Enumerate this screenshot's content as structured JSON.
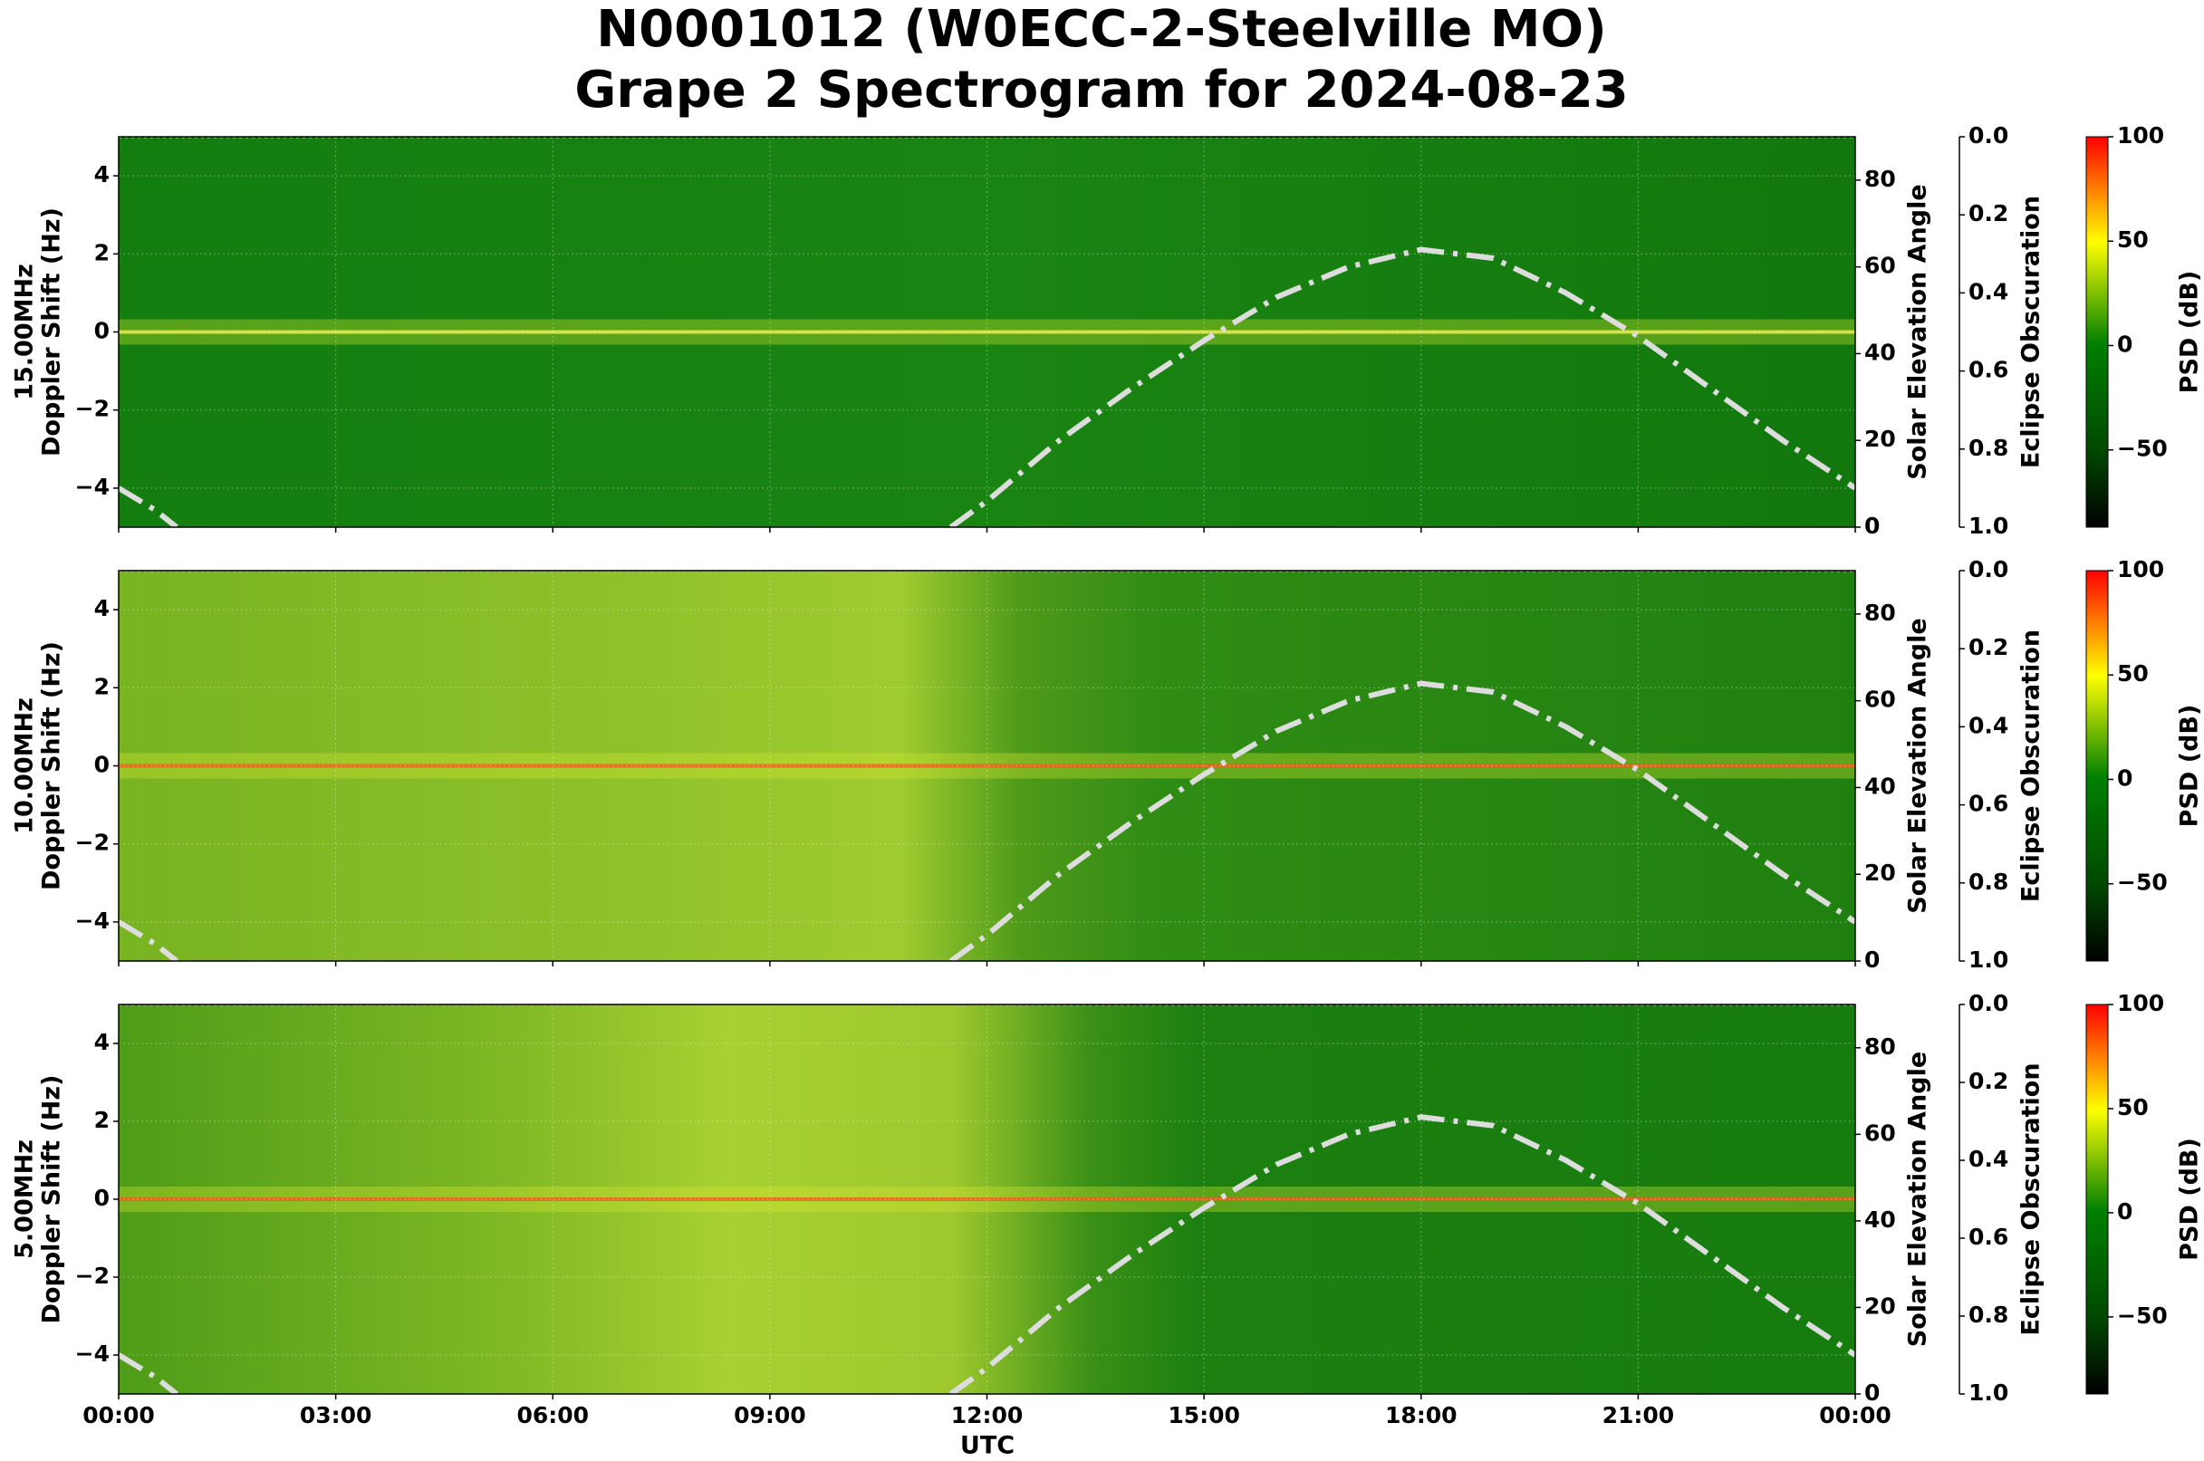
{
  "chart_data": {
    "type": "spectrogram",
    "title": "N0001012 (W0ECC-2-Steelville MO)",
    "subtitle": "Grape 2 Spectrogram for 2024-08-23",
    "xlabel": "UTC",
    "xlim": [
      0,
      24
    ],
    "xticks": [
      {
        "value": 0,
        "label": "00:00"
      },
      {
        "value": 3,
        "label": "03:00"
      },
      {
        "value": 6,
        "label": "06:00"
      },
      {
        "value": 9,
        "label": "09:00"
      },
      {
        "value": 12,
        "label": "12:00"
      },
      {
        "value": 15,
        "label": "15:00"
      },
      {
        "value": 18,
        "label": "18:00"
      },
      {
        "value": 21,
        "label": "21:00"
      },
      {
        "value": 24,
        "label": "00:00"
      }
    ],
    "grid": true,
    "panels": [
      {
        "ylabel": [
          "15.00MHz",
          "Doppler Shift (Hz)"
        ],
        "ylim": [
          -5,
          5
        ],
        "yticks": [
          {
            "value": -4,
            "label": "−4"
          },
          {
            "value": -2,
            "label": "−2"
          },
          0,
          2,
          4
        ],
        "y2label": "Solar Elevation Angle",
        "y2lim": [
          0,
          90
        ],
        "y2ticks": [
          0,
          20,
          40,
          60,
          80
        ],
        "y3label": "Eclipse Obscuration",
        "y3lim": [
          1,
          0
        ],
        "y3ticks": [
          {
            "value": 0,
            "label": "0.0"
          },
          0.2,
          0.4,
          0.6,
          0.8,
          {
            "value": 1,
            "label": "1.0"
          }
        ],
        "colorbar": {
          "label": "PSD (dB)",
          "lim": [
            -87,
            100
          ],
          "ticks": [
            {
              "value": -50,
              "label": "−50"
            },
            0,
            50,
            100
          ]
        },
        "series": [
          {
            "name": "Solar Elevation Angle",
            "axis": "y2",
            "color": "#dddddd",
            "x": [
              0,
              0.5,
              0.8,
              6,
              11.5,
              12,
              13,
              14,
              15,
              16,
              17,
              18,
              19,
              20,
              21,
              22,
              23,
              24
            ],
            "values": [
              9,
              4,
              0,
              null,
              0,
              6,
              20,
              32,
              43,
              53,
              60,
              64,
              62,
              54,
              44,
              32,
              20,
              9
            ]
          },
          {
            "name": "Eclipse Obscuration",
            "axis": "y3",
            "color": "#bbbbbb",
            "x": [
              0,
              24
            ],
            "values": [
              0,
              0
            ]
          }
        ]
      },
      {
        "ylabel": [
          "10.00MHz",
          "Doppler Shift (Hz)"
        ],
        "ylim": [
          -5,
          5
        ],
        "yticks": [
          {
            "value": -4,
            "label": "−4"
          },
          {
            "value": -2,
            "label": "−2"
          },
          0,
          2,
          4
        ],
        "y2label": "Solar Elevation Angle",
        "y2lim": [
          0,
          90
        ],
        "y2ticks": [
          0,
          20,
          40,
          60,
          80
        ],
        "y3label": "Eclipse Obscuration",
        "y3lim": [
          1,
          0
        ],
        "y3ticks": [
          {
            "value": 0,
            "label": "0.0"
          },
          0.2,
          0.4,
          0.6,
          0.8,
          {
            "value": 1,
            "label": "1.0"
          }
        ],
        "colorbar": {
          "label": "PSD (dB)",
          "lim": [
            -87,
            100
          ],
          "ticks": [
            {
              "value": -50,
              "label": "−50"
            },
            0,
            50,
            100
          ]
        },
        "series": [
          {
            "name": "Solar Elevation Angle",
            "axis": "y2",
            "color": "#dddddd",
            "x": [
              0,
              0.5,
              0.8,
              6,
              11.5,
              12,
              13,
              14,
              15,
              16,
              17,
              18,
              19,
              20,
              21,
              22,
              23,
              24
            ],
            "values": [
              9,
              4,
              0,
              null,
              0,
              6,
              20,
              32,
              43,
              53,
              60,
              64,
              62,
              54,
              44,
              32,
              20,
              9
            ]
          },
          {
            "name": "Eclipse Obscuration",
            "axis": "y3",
            "color": "#bbbbbb",
            "x": [
              0,
              24
            ],
            "values": [
              0,
              0
            ]
          }
        ]
      },
      {
        "ylabel": [
          "5.00MHz",
          "Doppler Shift (Hz)"
        ],
        "ylim": [
          -5,
          5
        ],
        "yticks": [
          {
            "value": -4,
            "label": "−4"
          },
          {
            "value": -2,
            "label": "−2"
          },
          0,
          2,
          4
        ],
        "y2label": "Solar Elevation Angle",
        "y2lim": [
          0,
          90
        ],
        "y2ticks": [
          0,
          20,
          40,
          60,
          80
        ],
        "y3label": "Eclipse Obscuration",
        "y3lim": [
          1,
          0
        ],
        "y3ticks": [
          {
            "value": 0,
            "label": "0.0"
          },
          0.2,
          0.4,
          0.6,
          0.8,
          {
            "value": 1,
            "label": "1.0"
          }
        ],
        "colorbar": {
          "label": "PSD (dB)",
          "lim": [
            -87,
            100
          ],
          "ticks": [
            {
              "value": -50,
              "label": "−50"
            },
            0,
            50,
            100
          ]
        },
        "series": [
          {
            "name": "Solar Elevation Angle",
            "axis": "y2",
            "color": "#dddddd",
            "x": [
              0,
              0.5,
              0.8,
              6,
              11.5,
              12,
              13,
              14,
              15,
              16,
              17,
              18,
              19,
              20,
              21,
              22,
              23,
              24
            ],
            "values": [
              9,
              4,
              0,
              null,
              0,
              6,
              20,
              32,
              43,
              53,
              60,
              64,
              62,
              54,
              44,
              32,
              20,
              9
            ]
          },
          {
            "name": "Eclipse Obscuration",
            "axis": "y3",
            "color": "#bbbbbb",
            "x": [
              0,
              24
            ],
            "values": [
              0,
              0
            ]
          }
        ]
      }
    ]
  }
}
